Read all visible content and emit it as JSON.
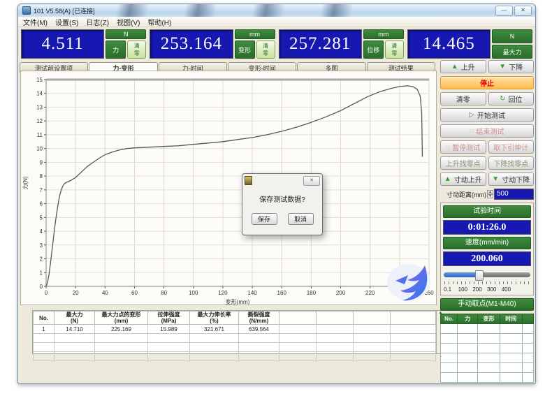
{
  "window": {
    "title": "101 V5.58(A)   [已连接]",
    "menu": [
      "文件(M)",
      "设置(S)",
      "日志(Z)",
      "视图(V)",
      "帮助(H)"
    ],
    "minimize": "—",
    "close": "✕"
  },
  "colors": {
    "green": "#2e7d2e",
    "display_blue": "#1717b2",
    "stop_orange": "#ffb94c",
    "stop_text": "#e00505"
  },
  "displays": [
    {
      "value": "4.511",
      "unit": "N",
      "label": "力",
      "zero": "清零"
    },
    {
      "value": "253.164",
      "unit": "mm",
      "label": "变形",
      "zero": "清零"
    },
    {
      "value": "257.281",
      "unit": "mm",
      "label": "位移",
      "zero": "清零"
    },
    {
      "value": "14.465",
      "unit": "N",
      "label": "最大力",
      "zero": null
    }
  ],
  "tabs": [
    {
      "label": "测试前设置项",
      "active": false
    },
    {
      "label": "力-变形",
      "active": true
    },
    {
      "label": "力-时间",
      "active": false
    },
    {
      "label": "变形-时间",
      "active": false
    },
    {
      "label": "多图",
      "active": false
    },
    {
      "label": "测试结果",
      "active": false
    }
  ],
  "chart_data": {
    "type": "line",
    "title": "",
    "xlabel": "变形(mm)",
    "ylabel": "力(N)",
    "xlim": [
      0,
      260
    ],
    "ylim": [
      0,
      15
    ],
    "xtick_step": 20,
    "ytick_step": 1,
    "grid": true,
    "watermark_icon": "bird-logo",
    "series": [
      {
        "name": "力-变形",
        "color": "#575757",
        "points": [
          [
            0,
            0
          ],
          [
            1,
            0.3
          ],
          [
            2,
            0.9
          ],
          [
            3,
            1.7
          ],
          [
            4,
            2.6
          ],
          [
            5,
            3.5
          ],
          [
            6,
            4.4
          ],
          [
            7,
            5.2
          ],
          [
            8,
            5.9
          ],
          [
            9,
            6.5
          ],
          [
            10,
            6.9
          ],
          [
            11,
            7.2
          ],
          [
            12,
            7.4
          ],
          [
            13,
            7.5
          ],
          [
            15,
            7.6
          ],
          [
            17,
            7.7
          ],
          [
            20,
            7.9
          ],
          [
            24,
            8.3
          ],
          [
            28,
            8.7
          ],
          [
            32,
            9.0
          ],
          [
            36,
            9.3
          ],
          [
            40,
            9.55
          ],
          [
            45,
            9.75
          ],
          [
            50,
            9.9
          ],
          [
            55,
            10.0
          ],
          [
            60,
            10.05
          ],
          [
            70,
            10.1
          ],
          [
            80,
            10.15
          ],
          [
            90,
            10.2
          ],
          [
            100,
            10.3
          ],
          [
            110,
            10.4
          ],
          [
            120,
            10.5
          ],
          [
            130,
            10.65
          ],
          [
            140,
            10.8
          ],
          [
            150,
            11.0
          ],
          [
            160,
            11.25
          ],
          [
            170,
            11.55
          ],
          [
            180,
            11.9
          ],
          [
            190,
            12.3
          ],
          [
            200,
            12.75
          ],
          [
            210,
            13.3
          ],
          [
            218,
            13.75
          ],
          [
            226,
            14.1
          ],
          [
            234,
            14.35
          ],
          [
            240,
            14.5
          ],
          [
            245,
            14.55
          ],
          [
            249,
            14.5
          ],
          [
            252,
            14.3
          ],
          [
            254,
            13.8
          ],
          [
            255,
            12.6
          ],
          [
            255.5,
            9.4
          ]
        ]
      }
    ]
  },
  "dialog": {
    "message": "保存测试数据?",
    "save": "保存",
    "cancel": "取消",
    "close": "✕"
  },
  "right_panel": {
    "buttons": {
      "up": "上升",
      "down": "下降",
      "stop": "停止",
      "zero": "清零",
      "return": "回位",
      "start": "开始测试",
      "end": "结束测试",
      "pause": "暂停测试",
      "remove_ext": "取下引伸计",
      "up_find_zero": "上升找零点",
      "down_find_zero": "下降找零点",
      "jog_up": "寸动上升",
      "jog_down": "寸动下降"
    },
    "jog": {
      "label": "寸动距离(mm)",
      "value": "500"
    },
    "time": {
      "label": "试验时间",
      "value": "0:01:26.0"
    },
    "speed": {
      "label": "速度(mm/min)",
      "value": "200.060",
      "scale": [
        "0.1",
        "100",
        "200",
        "300",
        "400"
      ]
    },
    "manual_points": {
      "title": "手动取点(M1-M40)",
      "columns": [
        "No.",
        "力",
        "变形",
        "时间",
        ""
      ]
    }
  },
  "results_table": {
    "columns": [
      {
        "name": "No.",
        "unit": ""
      },
      {
        "name": "最大力",
        "unit": "(N)"
      },
      {
        "name": "最大力点的变形",
        "unit": "(mm)"
      },
      {
        "name": "拉伸强度",
        "unit": "(MPa)"
      },
      {
        "name": "最大力伸长率",
        "unit": "(%)"
      },
      {
        "name": "撕裂强度",
        "unit": "(N/mm)"
      },
      {
        "name": "",
        "unit": ""
      },
      {
        "name": "",
        "unit": ""
      },
      {
        "name": "",
        "unit": ""
      },
      {
        "name": "",
        "unit": ""
      }
    ],
    "rows": [
      [
        "1",
        "14.710",
        "225.169",
        "15.989",
        "321.671",
        "639.564",
        "",
        "",
        "",
        ""
      ]
    ]
  }
}
